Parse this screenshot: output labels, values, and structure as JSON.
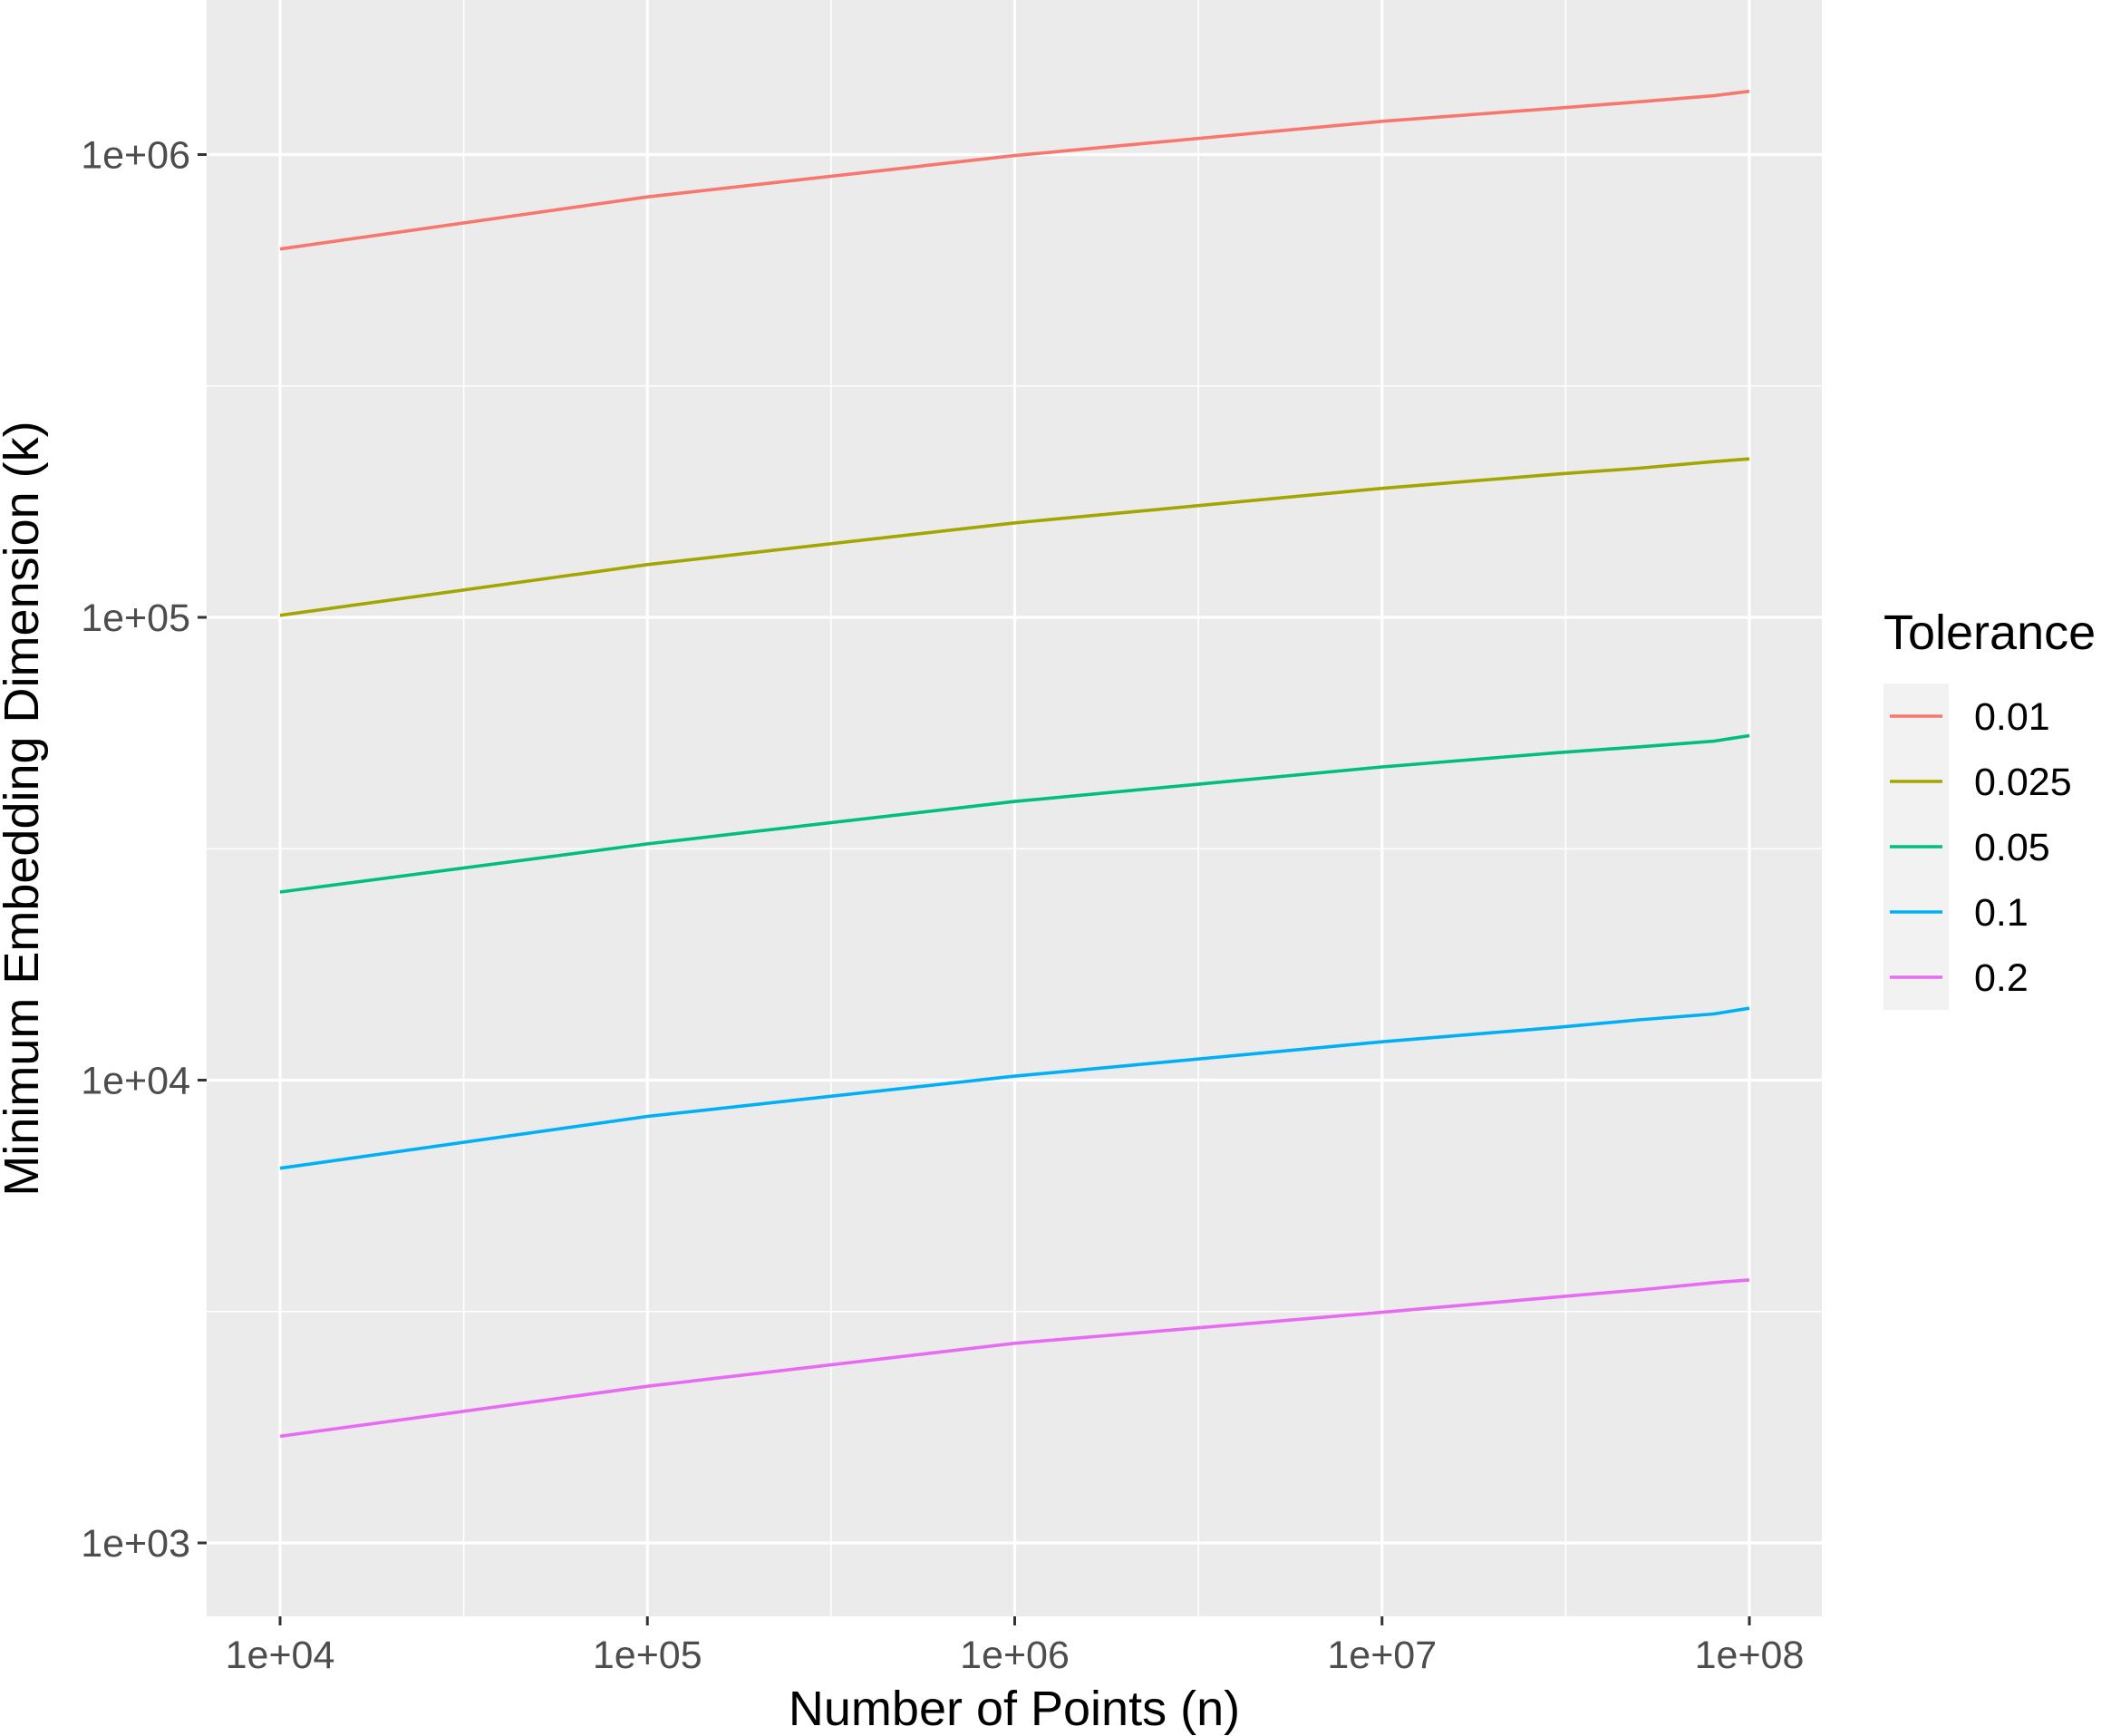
{
  "chart_data": {
    "type": "line",
    "title": "",
    "xlabel": "Number of Points (n)",
    "ylabel": "Minimum Embedding Dimension (k)",
    "x_scale": "log10",
    "y_scale": "log10",
    "xlim": [
      7000,
      150000000
    ],
    "ylim": [
      800,
      2000000
    ],
    "x_ticks": [
      10000,
      100000,
      1000000,
      10000000,
      100000000
    ],
    "x_tick_labels": [
      "1e+04",
      "1e+05",
      "1e+06",
      "1e+07",
      "1e+08"
    ],
    "y_ticks": [
      1000,
      10000,
      100000,
      1000000
    ],
    "y_tick_labels": [
      "1e+03",
      "1e+04",
      "1e+05",
      "1e+06"
    ],
    "grid": true,
    "legend": {
      "title": "Tolerance",
      "placement": "right"
    },
    "x": [
      10000,
      100000,
      1000000,
      10000000,
      30000000,
      50000000,
      80000000,
      100000000
    ],
    "series": [
      {
        "name": "0.01",
        "color": "#F8766D",
        "values": [
          625000,
          810000,
          995000,
          1180000,
          1260000,
          1300000,
          1340000,
          1370000
        ]
      },
      {
        "name": "0.025",
        "color": "#A3A500",
        "values": [
          101000,
          130000,
          160000,
          190000,
          204000,
          210000,
          217000,
          220000
        ]
      },
      {
        "name": "0.05",
        "color": "#00BF7D",
        "values": [
          25500,
          32400,
          40000,
          47500,
          51000,
          52500,
          54000,
          55500
        ]
      },
      {
        "name": "0.1",
        "color": "#00B0F6",
        "values": [
          6450,
          8350,
          10200,
          12100,
          13000,
          13500,
          13900,
          14300
        ]
      },
      {
        "name": "0.2",
        "color": "#E76BF3",
        "values": [
          1700,
          2180,
          2700,
          3150,
          3400,
          3520,
          3650,
          3700
        ]
      }
    ]
  }
}
